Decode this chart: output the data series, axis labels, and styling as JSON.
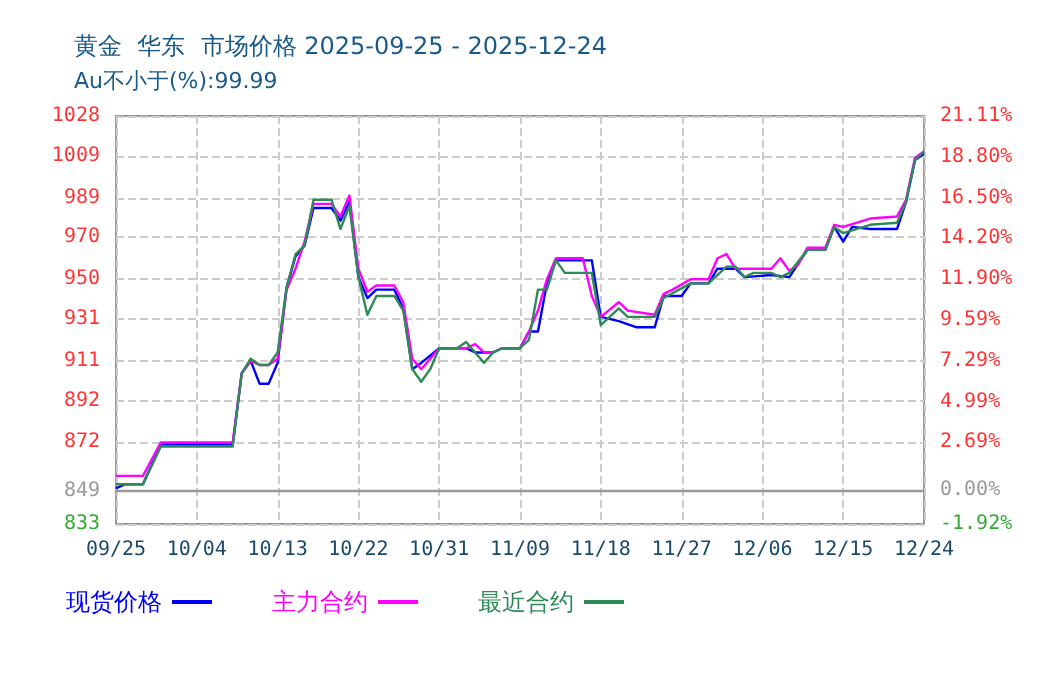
{
  "chart_data": {
    "type": "line",
    "title": "黄金  华东  市场价格 2025-09-25 - 2025-12-24",
    "subtitle": "Au不小于(%):99.99",
    "xlim": [
      "--09-25",
      "--12-24"
    ],
    "xticks": [
      {
        "value": "--09-25",
        "label": "09/25"
      },
      {
        "value": "--10-04",
        "label": "10/04"
      },
      {
        "value": "--10-13",
        "label": "10/13"
      },
      {
        "value": "--10-22",
        "label": "10/22"
      },
      {
        "value": "--10-31",
        "label": "10/31"
      },
      {
        "value": "--11-09",
        "label": "11/09"
      },
      {
        "value": "--11-18",
        "label": "11/18"
      },
      {
        "value": "--11-27",
        "label": "11/27"
      },
      {
        "value": "--12-06",
        "label": "12/06"
      },
      {
        "value": "--12-15",
        "label": "12/15"
      },
      {
        "value": "--12-24",
        "label": "12/24"
      }
    ],
    "ylim": [
      833,
      1028
    ],
    "yticks": [
      833,
      849,
      872,
      892,
      911,
      931,
      950,
      970,
      989,
      1009,
      1028
    ],
    "y2lim": [
      -1.92,
      21.11
    ],
    "y2ticks": [
      {
        "value": -1.92,
        "label": "-1.92%"
      },
      {
        "value": 0,
        "label": "0.00%"
      },
      {
        "value": 2.69,
        "label": "2.69%"
      },
      {
        "value": 4.99,
        "label": "4.99%"
      },
      {
        "value": 7.29,
        "label": "7.29%"
      },
      {
        "value": 9.59,
        "label": "9.59%"
      },
      {
        "value": 11.9,
        "label": "11.90%"
      },
      {
        "value": 14.2,
        "label": "14.20%"
      },
      {
        "value": 16.5,
        "label": "16.50%"
      },
      {
        "value": 18.8,
        "label": "18.80%"
      },
      {
        "value": 21.11,
        "label": "21.11%"
      }
    ],
    "ref_lines": [
      {
        "axis": "y2",
        "value": 0,
        "color": "#999999"
      }
    ],
    "grid": true,
    "legend": "bottom left",
    "marker": "none",
    "line_style": "solid",
    "series": [
      {
        "name": "现货价格",
        "color": "#0000ff",
        "x": [
          "--09-25",
          "--09-26",
          "--09-28",
          "--09-30",
          "--10-08",
          "--10-09",
          "--10-10",
          "--10-11",
          "--10-12",
          "--10-13",
          "--10-14",
          "--10-15",
          "--10-16",
          "--10-17",
          "--10-19",
          "--10-20",
          "--10-21",
          "--10-22",
          "--10-23",
          "--10-24",
          "--10-26",
          "--10-27",
          "--10-28",
          "--10-29",
          "--10-31",
          "--11-03",
          "--11-04",
          "--11-06",
          "--11-07",
          "--11-09",
          "--11-10",
          "--11-11",
          "--11-12",
          "--11-13",
          "--11-17",
          "--11-18",
          "--11-20",
          "--11-22",
          "--11-24",
          "--11-25",
          "--11-27",
          "--11-28",
          "--11-30",
          "--12-01",
          "--12-03",
          "--12-04",
          "--12-07",
          "--12-09",
          "--12-11",
          "--12-13",
          "--12-14",
          "--12-15",
          "--12-16",
          "--12-18",
          "--12-21",
          "--12-22",
          "--12-23",
          "--12-24"
        ],
        "values": [
          850,
          852,
          852,
          871,
          871,
          905,
          911,
          900,
          900,
          910,
          946,
          961,
          966,
          984,
          984,
          978,
          987,
          951,
          941,
          945,
          945,
          936,
          907,
          910,
          917,
          917,
          915,
          915,
          917,
          917,
          925,
          925,
          948,
          959,
          959,
          932,
          930,
          927,
          927,
          942,
          942,
          948,
          948,
          955,
          955,
          951,
          952,
          951,
          964,
          964,
          975,
          968,
          975,
          974,
          974,
          987,
          1007,
          1010
        ]
      },
      {
        "name": "主力合约",
        "color": "#ff00ff",
        "x": [
          "--09-25",
          "--09-28",
          "--09-30",
          "--10-08",
          "--10-09",
          "--10-10",
          "--10-11",
          "--10-12",
          "--10-13",
          "--10-14",
          "--10-15",
          "--10-16",
          "--10-17",
          "--10-19",
          "--10-20",
          "--10-21",
          "--10-22",
          "--10-23",
          "--10-24",
          "--10-26",
          "--10-27",
          "--10-28",
          "--10-29",
          "--10-30",
          "--10-31",
          "--11-03",
          "--11-04",
          "--11-05",
          "--11-06",
          "--11-07",
          "--11-09",
          "--11-10",
          "--11-11",
          "--11-12",
          "--11-13",
          "--11-16",
          "--11-17",
          "--11-18",
          "--11-20",
          "--11-21",
          "--11-24",
          "--11-25",
          "--11-26",
          "--11-28",
          "--11-30",
          "--12-01",
          "--12-02",
          "--12-03",
          "--12-07",
          "--12-08",
          "--12-09",
          "--12-10",
          "--12-11",
          "--12-13",
          "--12-14",
          "--12-15",
          "--12-18",
          "--12-21",
          "--12-22",
          "--12-23",
          "--12-24"
        ],
        "values": [
          856,
          856,
          872,
          872,
          905,
          911,
          909,
          909,
          912,
          945,
          955,
          968,
          986,
          986,
          980,
          990,
          955,
          944,
          947,
          947,
          939,
          912,
          907,
          912,
          917,
          917,
          919,
          915,
          915,
          917,
          917,
          925,
          935,
          950,
          960,
          960,
          942,
          932,
          939,
          935,
          933,
          943,
          945,
          950,
          950,
          960,
          962,
          955,
          955,
          960,
          954,
          957,
          965,
          965,
          976,
          975,
          979,
          980,
          988,
          1008,
          1011
        ]
      },
      {
        "name": "最近合约",
        "color": "#2e8b57",
        "x": [
          "--09-25",
          "--09-28",
          "--09-30",
          "--10-08",
          "--10-09",
          "--10-10",
          "--10-11",
          "--10-12",
          "--10-13",
          "--10-14",
          "--10-15",
          "--10-16",
          "--10-17",
          "--10-19",
          "--10-20",
          "--10-21",
          "--10-22",
          "--10-23",
          "--10-24",
          "--10-26",
          "--10-27",
          "--10-28",
          "--10-29",
          "--10-30",
          "--10-31",
          "--11-02",
          "--11-03",
          "--11-04",
          "--11-05",
          "--11-06",
          "--11-07",
          "--11-09",
          "--11-10",
          "--11-11",
          "--11-12",
          "--11-13",
          "--11-14",
          "--11-17",
          "--11-18",
          "--11-20",
          "--11-21",
          "--11-24",
          "--11-25",
          "--11-28",
          "--11-30",
          "--12-02",
          "--12-03",
          "--12-04",
          "--12-05",
          "--12-07",
          "--12-08",
          "--12-09",
          "--12-11",
          "--12-13",
          "--12-14",
          "--12-15",
          "--12-18",
          "--12-21",
          "--12-22",
          "--12-23",
          "--12-24"
        ],
        "values": [
          852,
          852,
          870,
          870,
          905,
          912,
          909,
          909,
          915,
          946,
          962,
          966,
          988,
          988,
          974,
          985,
          951,
          933,
          942,
          942,
          935,
          907,
          901,
          907,
          917,
          917,
          920,
          915,
          910,
          915,
          917,
          917,
          921,
          945,
          945,
          959,
          953,
          953,
          928,
          936,
          932,
          932,
          941,
          948,
          948,
          956,
          956,
          951,
          953,
          953,
          951,
          953,
          964,
          964,
          975,
          972,
          976,
          977,
          987,
          1007,
          1011
        ]
      }
    ]
  }
}
